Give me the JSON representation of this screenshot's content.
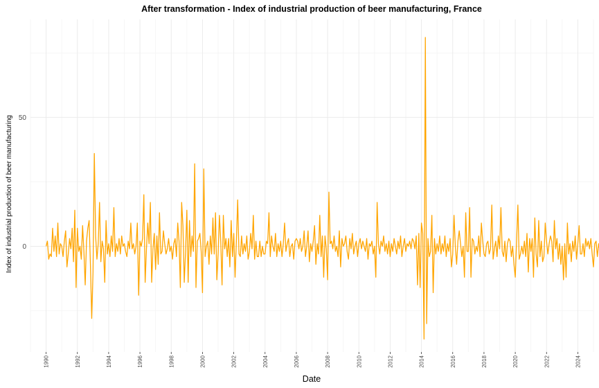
{
  "chart_data": {
    "type": "line",
    "title": "After transformation - Index of industrial production of beer manufacturing, France",
    "xlabel": "Date",
    "ylabel": "Index of industrial production of beer manufacturing",
    "xlim": [
      "1989-01-01",
      "2025-01-01"
    ],
    "ylim": [
      -41,
      88
    ],
    "y_ticks": [
      0,
      50
    ],
    "x_ticks": [
      "1990",
      "1992",
      "1994",
      "1996",
      "1998",
      "2000",
      "2002",
      "2004",
      "2006",
      "2008",
      "2010",
      "2012",
      "2014",
      "2016",
      "2018",
      "2020",
      "2022",
      "2024"
    ],
    "grid": true,
    "line_color": "#FFA500",
    "series": [
      {
        "x_start": "1990-01-01",
        "frequency": "monthly",
        "values": [
          0,
          2,
          -5,
          -3,
          -4,
          7,
          -2,
          4,
          -4,
          9,
          -3,
          1,
          0,
          -4,
          2,
          6,
          -8,
          -3,
          3,
          -1,
          7,
          -6,
          14,
          -16,
          7,
          -2,
          0,
          -5,
          8,
          -2,
          -15,
          2,
          7,
          10,
          -7,
          -28,
          -10,
          36,
          4,
          -5,
          1,
          17,
          -6,
          2,
          -1,
          -14,
          10,
          -3,
          1,
          -4,
          4,
          -2,
          15,
          -4,
          1,
          -2,
          3,
          -3,
          4,
          0,
          1,
          -2,
          -4,
          2,
          -1,
          9,
          -1,
          1,
          -3,
          0,
          9,
          -19,
          2,
          0,
          3,
          20,
          -14,
          -1,
          9,
          1,
          17,
          -14,
          -1,
          5,
          -9,
          4,
          -7,
          13,
          -3,
          -2,
          6,
          1,
          -3,
          -1,
          3,
          -2,
          0,
          -5,
          1,
          3,
          -4,
          9,
          2,
          -16,
          17,
          8,
          -14,
          -2,
          14,
          -14,
          10,
          -4,
          4,
          -2,
          32,
          -16,
          2,
          3,
          5,
          -2,
          -18,
          30,
          -4,
          0,
          2,
          -7,
          4,
          -3,
          11,
          -3,
          13,
          -13,
          -3,
          12,
          2,
          -15,
          12,
          -1,
          3,
          -4,
          3,
          -8,
          10,
          -4,
          5,
          -12,
          2,
          18,
          -3,
          -4,
          4,
          -3,
          1,
          -2,
          4,
          -5,
          -2,
          5,
          -1,
          12,
          -5,
          2,
          -4,
          -4,
          2,
          -4,
          0,
          -3,
          -3,
          2,
          1,
          13,
          -4,
          4,
          0,
          -2,
          5,
          -4,
          1,
          -2,
          2,
          -4,
          1,
          9,
          -2,
          1,
          3,
          -4,
          0,
          1,
          -5,
          2,
          3,
          2,
          -1,
          3,
          -2,
          0,
          6,
          -4,
          0,
          6,
          -6,
          1,
          -2,
          2,
          8,
          -7,
          1,
          -3,
          12,
          -4,
          4,
          -12,
          4,
          -1,
          -13,
          21,
          1,
          2,
          -1,
          4,
          -2,
          0,
          -4,
          6,
          -8,
          3,
          0,
          1,
          4,
          -2,
          -5,
          3,
          -1,
          5,
          -3,
          0,
          2,
          -4,
          1,
          3,
          -1,
          2,
          0,
          -2,
          3,
          -5,
          1,
          0,
          2,
          -3,
          0,
          -12,
          17,
          1,
          -3,
          2,
          0,
          4,
          -2,
          1,
          -3,
          2,
          -4,
          1,
          -2,
          3,
          0,
          -3,
          2,
          -1,
          4,
          -4,
          0,
          3,
          -2,
          1,
          0,
          2,
          -1,
          3,
          2,
          -1,
          4,
          -15,
          5,
          -16,
          9,
          5,
          -36,
          81,
          -30,
          3,
          -4,
          -2,
          12,
          -18,
          3,
          -3,
          1,
          -2,
          4,
          -3,
          1,
          -2,
          4,
          -4,
          1,
          -2,
          3,
          -8,
          -3,
          12,
          0,
          -7,
          2,
          6,
          1,
          -4,
          0,
          -12,
          13,
          -2,
          -2,
          15,
          -12,
          3,
          2,
          -3,
          0,
          -2,
          4,
          -4,
          9,
          2,
          -3,
          -4,
          1,
          2,
          -3,
          -1,
          16,
          -5,
          -1,
          2,
          -4,
          4,
          -1,
          15,
          -2,
          -4,
          2,
          -6,
          1,
          3,
          2,
          -4,
          0,
          -7,
          -12,
          2,
          16,
          -5,
          -3,
          0,
          -3,
          2,
          -4,
          5,
          -10,
          3,
          -2,
          3,
          -12,
          11,
          -3,
          -8,
          10,
          -4,
          2,
          -6,
          -4,
          9,
          2,
          -3,
          1,
          4,
          2,
          -6,
          10,
          -1,
          3,
          -5,
          1,
          -7,
          0,
          -13,
          1,
          -12,
          9,
          -3,
          1,
          -6,
          2,
          -2,
          4,
          -5,
          1,
          8,
          -3,
          -3,
          1,
          -4,
          3,
          0,
          2,
          -1,
          3,
          -3,
          -8,
          1,
          2,
          -4,
          1,
          -2,
          2,
          -2,
          -5,
          6,
          -2,
          4,
          -4,
          -4,
          11,
          -4,
          3,
          -5,
          5,
          0,
          -6,
          3,
          -5,
          9,
          -6,
          -1,
          5,
          -3,
          6,
          -1,
          3,
          -9,
          2,
          -8,
          1,
          -10,
          -6,
          8,
          -5,
          -2,
          -5,
          -3,
          1,
          -3,
          2,
          8,
          -3,
          -10,
          -11
        ]
      }
    ]
  }
}
